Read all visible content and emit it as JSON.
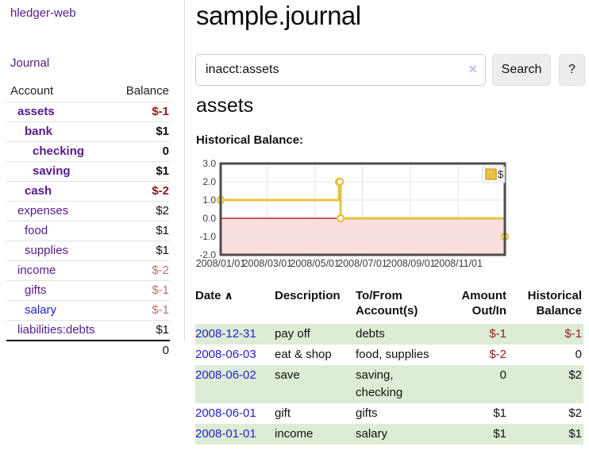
{
  "app": {
    "title": "hledger-web"
  },
  "sidebar": {
    "journal_label": "Journal",
    "accounts_table": {
      "headers": {
        "account": "Account",
        "balance": "Balance"
      },
      "rows": [
        {
          "name": "assets",
          "balance": "$-1",
          "level": 1,
          "bold": true,
          "balance_style": "neg"
        },
        {
          "name": "bank",
          "balance": "$1",
          "level": 2,
          "bold": true,
          "balance_style": ""
        },
        {
          "name": "checking",
          "balance": "0",
          "level": 3,
          "bold": true,
          "balance_style": ""
        },
        {
          "name": "saving",
          "balance": "$1",
          "level": 3,
          "bold": true,
          "balance_style": ""
        },
        {
          "name": "cash",
          "balance": "$-2",
          "level": 2,
          "bold": true,
          "balance_style": "neg"
        },
        {
          "name": "expenses",
          "balance": "$2",
          "level": 1,
          "bold": false,
          "balance_style": ""
        },
        {
          "name": "food",
          "balance": "$1",
          "level": 2,
          "bold": false,
          "balance_style": ""
        },
        {
          "name": "supplies",
          "balance": "$1",
          "level": 2,
          "bold": false,
          "balance_style": ""
        },
        {
          "name": "income",
          "balance": "$-2",
          "level": 1,
          "bold": false,
          "balance_style": "negl"
        },
        {
          "name": "gifts",
          "balance": "$-1",
          "level": 2,
          "bold": false,
          "balance_style": "negl"
        },
        {
          "name": "salary",
          "balance": "$-1",
          "level": 2,
          "bold": false,
          "balance_style": "negl",
          "link_color": "blue"
        },
        {
          "name": "liabilities:debts",
          "balance": "$1",
          "level": 1,
          "bold": false,
          "balance_style": ""
        }
      ],
      "total": "0"
    }
  },
  "main": {
    "title": "sample.journal",
    "search": {
      "value": "inacct:assets",
      "clear_icon": "×",
      "button_label": "Search",
      "help_label": "?"
    },
    "account_heading": "assets",
    "chart_label": "Historical Balance:"
  },
  "chart_data": {
    "type": "line",
    "step": true,
    "title": "Historical Balance",
    "series": [
      {
        "name": "$",
        "color": "#e8c240",
        "points": [
          {
            "date": "2008/01/01",
            "day": 0,
            "value": 1
          },
          {
            "date": "2008/06/01",
            "day": 152,
            "value": 2
          },
          {
            "date": "2008/06/02",
            "day": 153,
            "value": 2
          },
          {
            "date": "2008/06/03",
            "day": 154,
            "value": 0
          },
          {
            "date": "2008/12/31",
            "day": 365,
            "value": -1
          }
        ]
      }
    ],
    "x_ticks": [
      {
        "label": "2008/01/01",
        "day": 0
      },
      {
        "label": "2008/03/01",
        "day": 60
      },
      {
        "label": "2008/05/01",
        "day": 121
      },
      {
        "label": "2008/07/01",
        "day": 182
      },
      {
        "label": "2008/09/01",
        "day": 244
      },
      {
        "label": "2008/11/01",
        "day": 305
      }
    ],
    "y_ticks": [
      "3.0",
      "2.0",
      "1.0",
      "0.0",
      "-1.0",
      "-2.0"
    ],
    "ylim": [
      -2,
      3
    ],
    "xlim_days": [
      0,
      365
    ],
    "grid": true,
    "colors": {
      "grid": "#e6e6e6",
      "border": "#4d4d4d",
      "negative_region": "#fbdfdf",
      "zero_line": "#960000",
      "marker_fill": "#ffffff",
      "axis_text": "#3d3d3d"
    },
    "legend": {
      "label": "$",
      "position": "top-right",
      "swatch_color": "#e8c240"
    }
  },
  "register": {
    "headers": {
      "date": "Date",
      "description": "Description",
      "accounts": "To/From Account(s)",
      "amount": "Amount Out/In",
      "balance": "Historical Balance"
    },
    "sort_icon": "∧",
    "rows": [
      {
        "date": "2008-12-31",
        "description": "pay off",
        "accounts": "debts",
        "amount": "$-1",
        "balance": "$-1",
        "amount_neg": true,
        "balance_neg": true,
        "highlight": true
      },
      {
        "date": "2008-06-03",
        "description": "eat & shop",
        "accounts": "food, supplies",
        "amount": "$-2",
        "balance": "0",
        "amount_neg": true,
        "balance_neg": false,
        "highlight": false
      },
      {
        "date": "2008-06-02",
        "description": "save",
        "accounts": "saving, checking",
        "amount": "0",
        "balance": "$2",
        "amount_neg": false,
        "balance_neg": false,
        "highlight": true
      },
      {
        "date": "2008-06-01",
        "description": "gift",
        "accounts": "gifts",
        "amount": "$1",
        "balance": "$2",
        "amount_neg": false,
        "balance_neg": false,
        "highlight": false
      },
      {
        "date": "2008-01-01",
        "description": "income",
        "accounts": "salary",
        "amount": "$1",
        "balance": "$1",
        "amount_neg": false,
        "balance_neg": false,
        "highlight": true
      }
    ]
  }
}
